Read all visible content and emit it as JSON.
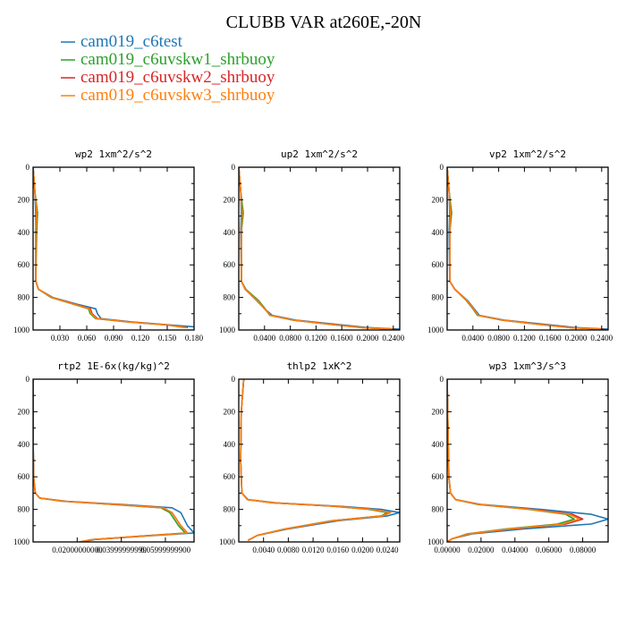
{
  "title": "CLUBB VAR at260E,-20N",
  "legend": [
    {
      "label": "cam019_c6test",
      "color": "#1f77b4"
    },
    {
      "label": "cam019_c6uvskw1_shrbuoy",
      "color": "#2ca02c"
    },
    {
      "label": "cam019_c6uvskw2_shrbuoy",
      "color": "#d62728"
    },
    {
      "label": "cam019_c6uvskw3_shrbuoy",
      "color": "#ff7f0e"
    }
  ],
  "chart_data": [
    {
      "type": "line",
      "title": "wp2  1xm^2/s^2",
      "xlim": [
        0,
        0.18
      ],
      "ylim": [
        1000,
        0
      ],
      "xticks": [
        0.03,
        0.06,
        0.09,
        0.12,
        0.15,
        0.18
      ],
      "xtick_labels": [
        "0.030",
        "0.060",
        "0.090",
        "0.120",
        "0.150",
        "0.180"
      ],
      "yticks": [
        0,
        200,
        400,
        600,
        800,
        1000
      ],
      "ytick_labels": [
        "0",
        "200",
        "400",
        "600",
        "800",
        "1000"
      ],
      "series": [
        {
          "name": "cam019_c6test",
          "color": "#1f77b4",
          "x": [
            0.0,
            0.002,
            0.003,
            0.003,
            0.003,
            0.006,
            0.022,
            0.048,
            0.07,
            0.072,
            0.076,
            0.11,
            0.155,
            0.18
          ],
          "y": [
            0,
            150,
            280,
            400,
            700,
            750,
            800,
            840,
            870,
            900,
            930,
            950,
            970,
            980
          ]
        },
        {
          "name": "cam019_c6uvskw1_shrbuoy",
          "color": "#2ca02c",
          "x": [
            0.0,
            0.002,
            0.005,
            0.004,
            0.003,
            0.006,
            0.02,
            0.044,
            0.062,
            0.064,
            0.07,
            0.105,
            0.15,
            0.17
          ],
          "y": [
            0,
            150,
            280,
            400,
            700,
            750,
            800,
            840,
            870,
            900,
            930,
            950,
            970,
            985
          ]
        },
        {
          "name": "cam019_c6uvskw2_shrbuoy",
          "color": "#d62728",
          "x": [
            0.0,
            0.002,
            0.004,
            0.003,
            0.003,
            0.006,
            0.021,
            0.046,
            0.064,
            0.066,
            0.072,
            0.107,
            0.152,
            0.173
          ],
          "y": [
            0,
            150,
            280,
            400,
            700,
            750,
            800,
            840,
            870,
            900,
            930,
            950,
            970,
            985
          ]
        },
        {
          "name": "cam019_c6uvskw3_shrbuoy",
          "color": "#ff7f0e",
          "x": [
            0.0,
            0.002,
            0.004,
            0.003,
            0.003,
            0.006,
            0.021,
            0.045,
            0.063,
            0.065,
            0.071,
            0.106,
            0.151,
            0.172
          ],
          "y": [
            0,
            150,
            280,
            400,
            700,
            750,
            800,
            840,
            870,
            900,
            930,
            950,
            970,
            985
          ]
        }
      ]
    },
    {
      "type": "line",
      "title": "up2  1xm^2/s^2",
      "xlim": [
        0,
        0.25
      ],
      "ylim": [
        1000,
        0
      ],
      "xticks": [
        0.04,
        0.08,
        0.12,
        0.16,
        0.2,
        0.24
      ],
      "xtick_labels": [
        "0.0400",
        "0.0800",
        "0.1200",
        "0.1600",
        "0.2000",
        "0.2400"
      ],
      "yticks": [
        0,
        200,
        400,
        600,
        800,
        1000
      ],
      "ytick_labels": [
        "0",
        "200",
        "400",
        "600",
        "800",
        "1000"
      ],
      "series": [
        {
          "name": "cam019_c6test",
          "color": "#1f77b4",
          "x": [
            0.0,
            0.003,
            0.004,
            0.003,
            0.004,
            0.01,
            0.028,
            0.04,
            0.052,
            0.09,
            0.15,
            0.2,
            0.25
          ],
          "y": [
            0,
            150,
            280,
            400,
            700,
            750,
            820,
            870,
            910,
            940,
            965,
            985,
            995
          ]
        },
        {
          "name": "cam019_c6uvskw1_shrbuoy",
          "color": "#2ca02c",
          "x": [
            0.0,
            0.003,
            0.007,
            0.004,
            0.004,
            0.011,
            0.031,
            0.041,
            0.048,
            0.085,
            0.14,
            0.19,
            0.24
          ],
          "y": [
            0,
            150,
            280,
            400,
            700,
            750,
            820,
            870,
            910,
            940,
            965,
            985,
            995
          ]
        },
        {
          "name": "cam019_c6uvskw2_shrbuoy",
          "color": "#d62728",
          "x": [
            0.0,
            0.003,
            0.005,
            0.004,
            0.004,
            0.01,
            0.029,
            0.04,
            0.049,
            0.086,
            0.142,
            0.192,
            0.242
          ],
          "y": [
            0,
            150,
            280,
            400,
            700,
            750,
            820,
            870,
            910,
            940,
            965,
            985,
            995
          ]
        },
        {
          "name": "cam019_c6uvskw3_shrbuoy",
          "color": "#ff7f0e",
          "x": [
            0.0,
            0.003,
            0.005,
            0.004,
            0.004,
            0.01,
            0.029,
            0.04,
            0.049,
            0.086,
            0.141,
            0.191,
            0.241
          ],
          "y": [
            0,
            150,
            280,
            400,
            700,
            750,
            820,
            870,
            910,
            940,
            965,
            985,
            995
          ]
        }
      ]
    },
    {
      "type": "line",
      "title": "vp2  1xm^2/s^2",
      "xlim": [
        0,
        0.25
      ],
      "ylim": [
        1000,
        0
      ],
      "xticks": [
        0.04,
        0.08,
        0.12,
        0.16,
        0.2,
        0.24
      ],
      "xtick_labels": [
        "0.0400",
        "0.0800",
        "0.1200",
        "0.1600",
        "0.2000",
        "0.2400"
      ],
      "yticks": [
        0,
        200,
        400,
        600,
        800,
        1000
      ],
      "ytick_labels": [
        "0",
        "200",
        "400",
        "600",
        "800",
        "1000"
      ],
      "series": [
        {
          "name": "cam019_c6test",
          "color": "#1f77b4",
          "x": [
            0.0,
            0.003,
            0.004,
            0.003,
            0.004,
            0.012,
            0.032,
            0.042,
            0.05,
            0.09,
            0.15,
            0.2,
            0.25
          ],
          "y": [
            0,
            150,
            280,
            400,
            700,
            750,
            820,
            870,
            910,
            940,
            965,
            985,
            995
          ]
        },
        {
          "name": "cam019_c6uvskw1_shrbuoy",
          "color": "#2ca02c",
          "x": [
            0.0,
            0.003,
            0.007,
            0.004,
            0.004,
            0.012,
            0.03,
            0.04,
            0.047,
            0.086,
            0.14,
            0.19,
            0.24
          ],
          "y": [
            0,
            150,
            280,
            400,
            700,
            750,
            820,
            870,
            910,
            940,
            965,
            985,
            995
          ]
        },
        {
          "name": "cam019_c6uvskw2_shrbuoy",
          "color": "#d62728",
          "x": [
            0.0,
            0.003,
            0.005,
            0.004,
            0.004,
            0.012,
            0.031,
            0.041,
            0.048,
            0.087,
            0.142,
            0.192,
            0.242
          ],
          "y": [
            0,
            150,
            280,
            400,
            700,
            750,
            820,
            870,
            910,
            940,
            965,
            985,
            995
          ]
        },
        {
          "name": "cam019_c6uvskw3_shrbuoy",
          "color": "#ff7f0e",
          "x": [
            0.0,
            0.003,
            0.005,
            0.004,
            0.004,
            0.012,
            0.031,
            0.041,
            0.048,
            0.087,
            0.141,
            0.191,
            0.241
          ],
          "y": [
            0,
            150,
            280,
            400,
            700,
            750,
            820,
            870,
            910,
            940,
            965,
            985,
            995
          ]
        }
      ]
    },
    {
      "type": "line",
      "title": "rtp2  1E-6x(kg/kg)^2",
      "xlim": [
        0,
        0.073
      ],
      "ylim": [
        1000,
        0
      ],
      "xticks": [
        0.02,
        0.04,
        0.06
      ],
      "xtick_labels": [
        "0.02000000000",
        "0.03999999999",
        "0.05999999900"
      ],
      "yticks": [
        0,
        200,
        400,
        600,
        800,
        1000
      ],
      "ytick_labels": [
        "0",
        "200",
        "400",
        "600",
        "800",
        "1000"
      ],
      "series": [
        {
          "name": "cam019_c6test",
          "color": "#1f77b4",
          "x": [
            0.0,
            0.0,
            0.0002,
            0.001,
            0.003,
            0.015,
            0.04,
            0.063,
            0.067,
            0.07,
            0.073,
            0.05,
            0.028,
            0.022
          ],
          "y": [
            0,
            300,
            600,
            700,
            730,
            750,
            770,
            790,
            820,
            900,
            945,
            965,
            985,
            1000
          ]
        },
        {
          "name": "cam019_c6uvskw1_shrbuoy",
          "color": "#2ca02c",
          "x": [
            0.0,
            0.0,
            0.0002,
            0.001,
            0.003,
            0.013,
            0.036,
            0.058,
            0.062,
            0.066,
            0.069,
            0.048,
            0.027,
            0.021
          ],
          "y": [
            0,
            300,
            600,
            700,
            730,
            750,
            770,
            790,
            820,
            900,
            945,
            965,
            985,
            1000
          ]
        },
        {
          "name": "cam019_c6uvskw2_shrbuoy",
          "color": "#d62728",
          "x": [
            0.0,
            0.0,
            0.0002,
            0.001,
            0.003,
            0.014,
            0.037,
            0.059,
            0.063,
            0.067,
            0.07,
            0.049,
            0.027,
            0.021
          ],
          "y": [
            0,
            300,
            600,
            700,
            730,
            750,
            770,
            790,
            820,
            900,
            945,
            965,
            985,
            1000
          ]
        },
        {
          "name": "cam019_c6uvskw3_shrbuoy",
          "color": "#ff7f0e",
          "x": [
            0.0,
            0.0,
            0.0002,
            0.001,
            0.003,
            0.014,
            0.037,
            0.059,
            0.063,
            0.067,
            0.07,
            0.049,
            0.027,
            0.021
          ],
          "y": [
            0,
            300,
            600,
            700,
            730,
            750,
            770,
            790,
            820,
            900,
            945,
            965,
            985,
            1000
          ]
        }
      ]
    },
    {
      "type": "line",
      "title": "thlp2  1xK^2",
      "xlim": [
        0,
        0.026
      ],
      "ylim": [
        1000,
        0
      ],
      "xticks": [
        0.004,
        0.008,
        0.012,
        0.016,
        0.02,
        0.024
      ],
      "xtick_labels": [
        "0.0040",
        "0.0080",
        "0.0120",
        "0.0160",
        "0.0200",
        "0.0240"
      ],
      "yticks": [
        0,
        200,
        400,
        600,
        800,
        1000
      ],
      "ytick_labels": [
        "0",
        "200",
        "400",
        "600",
        "800",
        "1000"
      ],
      "series": [
        {
          "name": "cam019_c6test",
          "color": "#1f77b4",
          "x": [
            0.0008,
            0.0004,
            0.0003,
            0.0005,
            0.0015,
            0.006,
            0.016,
            0.023,
            0.026,
            0.024,
            0.016,
            0.008,
            0.003,
            0.0015
          ],
          "y": [
            0,
            200,
            500,
            700,
            740,
            760,
            780,
            800,
            820,
            840,
            870,
            920,
            960,
            990
          ]
        },
        {
          "name": "cam019_c6uvskw1_shrbuoy",
          "color": "#2ca02c",
          "x": [
            0.0008,
            0.0004,
            0.0003,
            0.0005,
            0.0014,
            0.0055,
            0.015,
            0.021,
            0.024,
            0.023,
            0.015,
            0.0075,
            0.003,
            0.0015
          ],
          "y": [
            0,
            200,
            500,
            700,
            740,
            760,
            780,
            800,
            820,
            840,
            870,
            920,
            960,
            990
          ]
        },
        {
          "name": "cam019_c6uvskw2_shrbuoy",
          "color": "#d62728",
          "x": [
            0.0008,
            0.0004,
            0.0003,
            0.0005,
            0.0014,
            0.0056,
            0.0152,
            0.0215,
            0.0245,
            0.0232,
            0.0152,
            0.0076,
            0.003,
            0.0015
          ],
          "y": [
            0,
            200,
            500,
            700,
            740,
            760,
            780,
            800,
            820,
            840,
            870,
            920,
            960,
            990
          ]
        },
        {
          "name": "cam019_c6uvskw3_shrbuoy",
          "color": "#ff7f0e",
          "x": [
            0.0008,
            0.0004,
            0.0003,
            0.0005,
            0.0014,
            0.0056,
            0.0152,
            0.0215,
            0.0245,
            0.0232,
            0.0152,
            0.0076,
            0.003,
            0.0015
          ],
          "y": [
            0,
            200,
            500,
            700,
            740,
            760,
            780,
            800,
            820,
            840,
            870,
            920,
            960,
            990
          ]
        }
      ]
    },
    {
      "type": "line",
      "title": "wp3  1xm^3/s^3",
      "xlim": [
        0,
        0.095
      ],
      "ylim": [
        1000,
        0
      ],
      "xticks": [
        0.0,
        0.02,
        0.04,
        0.06,
        0.08
      ],
      "xtick_labels": [
        "0.00000",
        "0.02000",
        "0.04000",
        "0.06000",
        "0.08000"
      ],
      "yticks": [
        0,
        200,
        400,
        600,
        800,
        1000
      ],
      "ytick_labels": [
        "0",
        "200",
        "400",
        "600",
        "800",
        "1000"
      ],
      "series": [
        {
          "name": "cam019_c6test",
          "color": "#1f77b4",
          "x": [
            0.0,
            0.0005,
            0.001,
            0.002,
            0.005,
            0.02,
            0.055,
            0.085,
            0.095,
            0.085,
            0.045,
            0.015,
            0.003,
            0.0
          ],
          "y": [
            0,
            300,
            600,
            700,
            740,
            770,
            800,
            830,
            860,
            890,
            920,
            950,
            980,
            1000
          ]
        },
        {
          "name": "cam019_c6uvskw1_shrbuoy",
          "color": "#2ca02c",
          "x": [
            0.0,
            0.0005,
            0.001,
            0.002,
            0.005,
            0.018,
            0.048,
            0.07,
            0.075,
            0.065,
            0.035,
            0.012,
            0.003,
            0.0
          ],
          "y": [
            0,
            300,
            600,
            700,
            740,
            770,
            800,
            830,
            860,
            890,
            920,
            950,
            980,
            1000
          ]
        },
        {
          "name": "cam019_c6uvskw2_shrbuoy",
          "color": "#d62728",
          "x": [
            0.0,
            0.0005,
            0.001,
            0.002,
            0.005,
            0.019,
            0.05,
            0.074,
            0.08,
            0.07,
            0.038,
            0.013,
            0.003,
            0.0
          ],
          "y": [
            0,
            300,
            600,
            700,
            740,
            770,
            800,
            830,
            860,
            890,
            920,
            950,
            980,
            1000
          ]
        },
        {
          "name": "cam019_c6uvskw3_shrbuoy",
          "color": "#ff7f0e",
          "x": [
            0.0,
            0.0005,
            0.001,
            0.002,
            0.005,
            0.019,
            0.049,
            0.072,
            0.078,
            0.068,
            0.037,
            0.013,
            0.003,
            0.0
          ],
          "y": [
            0,
            300,
            600,
            700,
            740,
            770,
            800,
            830,
            860,
            890,
            920,
            950,
            980,
            1000
          ]
        }
      ]
    }
  ]
}
